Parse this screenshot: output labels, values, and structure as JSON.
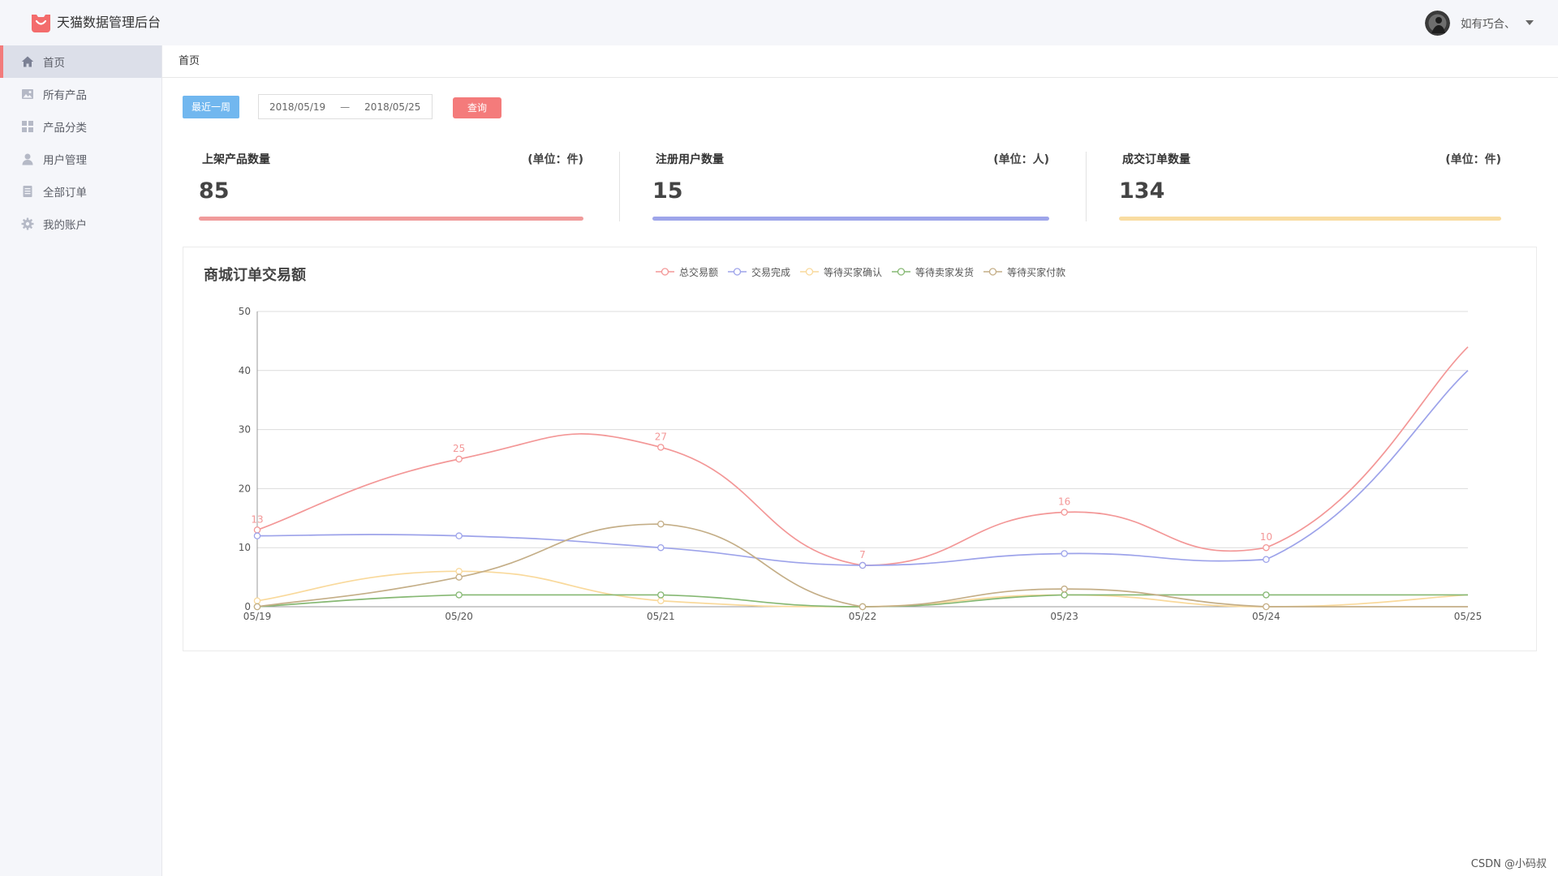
{
  "app": {
    "title": "天猫数据管理后台"
  },
  "user": {
    "name": "如有巧合、"
  },
  "sidebar": {
    "items": [
      {
        "label": "首页",
        "icon": "home-icon",
        "active": true
      },
      {
        "label": "所有产品",
        "icon": "picture-icon"
      },
      {
        "label": "产品分类",
        "icon": "grid-icon"
      },
      {
        "label": "用户管理",
        "icon": "user-icon"
      },
      {
        "label": "全部订单",
        "icon": "document-icon"
      },
      {
        "label": "我的账户",
        "icon": "gear-icon"
      }
    ]
  },
  "breadcrumb": {
    "current": "首页"
  },
  "filter": {
    "recent_week_label": "最近一周",
    "start_date": "2018/05/19",
    "separator": "—",
    "end_date": "2018/05/25",
    "query_label": "查询"
  },
  "stats": [
    {
      "title": "上架产品数量",
      "unit": "(单位：件)",
      "value": "85",
      "color": "#f09b9b"
    },
    {
      "title": "注册用户数量",
      "unit": "(单位：人)",
      "value": "15",
      "color": "#9ea5ea"
    },
    {
      "title": "成交订单数量",
      "unit": "(单位：件)",
      "value": "134",
      "color": "#f9dca1"
    }
  ],
  "chart_data": {
    "type": "line",
    "title": "商城订单交易额",
    "categories": [
      "05/19",
      "05/20",
      "05/21",
      "05/22",
      "05/23",
      "05/24",
      "05/25"
    ],
    "ylim": [
      0,
      50
    ],
    "yticks": [
      0,
      10,
      20,
      30,
      40,
      50
    ],
    "grid": true,
    "smooth": true,
    "legend_position": "top-center",
    "series": [
      {
        "name": "总交易额",
        "values": [
          13,
          25,
          27,
          7,
          16,
          10,
          44
        ],
        "color": "#f39797",
        "show_labels": true
      },
      {
        "name": "交易完成",
        "values": [
          12,
          12,
          10,
          7,
          9,
          8,
          40
        ],
        "color": "#9da3ea"
      },
      {
        "name": "等待买家确认",
        "values": [
          1,
          6,
          1,
          0,
          2,
          0,
          2
        ],
        "color": "#f9d99b"
      },
      {
        "name": "等待卖家发货",
        "values": [
          0,
          2,
          2,
          0,
          2,
          2,
          2
        ],
        "color": "#86b873"
      },
      {
        "name": "等待买家付款",
        "values": [
          0,
          5,
          14,
          0,
          3,
          0,
          0
        ],
        "color": "#c4ae87"
      }
    ]
  },
  "watermark": "CSDN @小码叔"
}
